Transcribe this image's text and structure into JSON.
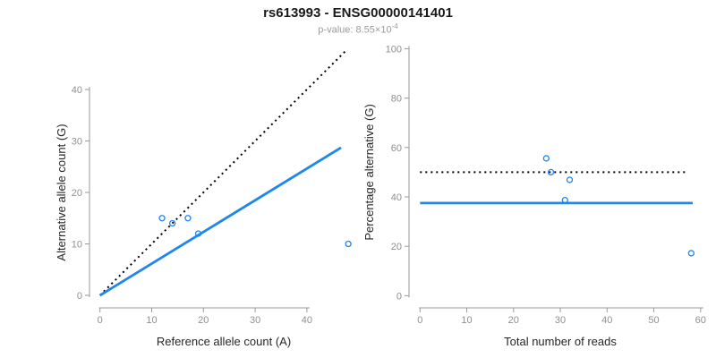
{
  "header": {
    "title": "rs613993 - ENSG00000141401",
    "subtitle_prefix": "p-value: 8.55×10",
    "subtitle_exponent": "-4"
  },
  "colors": {
    "accent_blue": "#1E87EE",
    "dotted_black": "#000000",
    "axis_line_gray": "#999999",
    "tick_label_gray": "#8f8f8f",
    "axis_title_dark": "#262626"
  },
  "chart_data": [
    {
      "type": "scatter",
      "panel_name": "allele-count-panel",
      "xlabel": "Reference allele count (A)",
      "ylabel": "Alternative allele count (G)",
      "xticks": [
        0,
        10,
        20,
        30,
        40
      ],
      "yticks": [
        0,
        10,
        20,
        30,
        40
      ],
      "xlim": [
        0,
        48.5
      ],
      "ylim": [
        0,
        48
      ],
      "grid": false,
      "legend": "none",
      "points": [
        [
          12,
          15
        ],
        [
          14,
          14
        ],
        [
          17,
          15
        ],
        [
          19,
          12
        ],
        [
          48,
          10
        ]
      ],
      "lines": [
        {
          "name": "identity-line",
          "style": "dotted",
          "color": "#000000",
          "width": 2,
          "x1": 0,
          "y1": 0,
          "x2": 47.5,
          "y2": 47.5
        },
        {
          "name": "fit-line",
          "style": "solid",
          "color": "#1E87EE",
          "width": 2.8,
          "x1": 0,
          "y1": 0,
          "x2": 46.6,
          "y2": 28.7
        }
      ]
    },
    {
      "type": "scatter",
      "panel_name": "percentage-panel",
      "xlabel": "Total number of reads",
      "ylabel": "Percentage alternative (G)",
      "xticks": [
        0,
        10,
        20,
        30,
        40,
        50,
        60
      ],
      "yticks": [
        0,
        20,
        40,
        60,
        80,
        100
      ],
      "xlim": [
        0,
        60
      ],
      "ylim": [
        0,
        100
      ],
      "grid": false,
      "legend": "none",
      "points": [
        [
          27,
          55.6
        ],
        [
          28,
          50
        ],
        [
          32,
          46.9
        ],
        [
          31,
          38.7
        ],
        [
          58,
          17.2
        ]
      ],
      "lines": [
        {
          "name": "fifty-percent-line",
          "style": "dotted",
          "color": "#000000",
          "width": 2,
          "x1": 0,
          "y1": 50,
          "x2": 57,
          "y2": 50
        },
        {
          "name": "mean-percentage-line",
          "style": "solid",
          "color": "#1E87EE",
          "width": 2.8,
          "x1": 0,
          "y1": 37.5,
          "x2": 58.3,
          "y2": 37.5
        }
      ]
    }
  ]
}
